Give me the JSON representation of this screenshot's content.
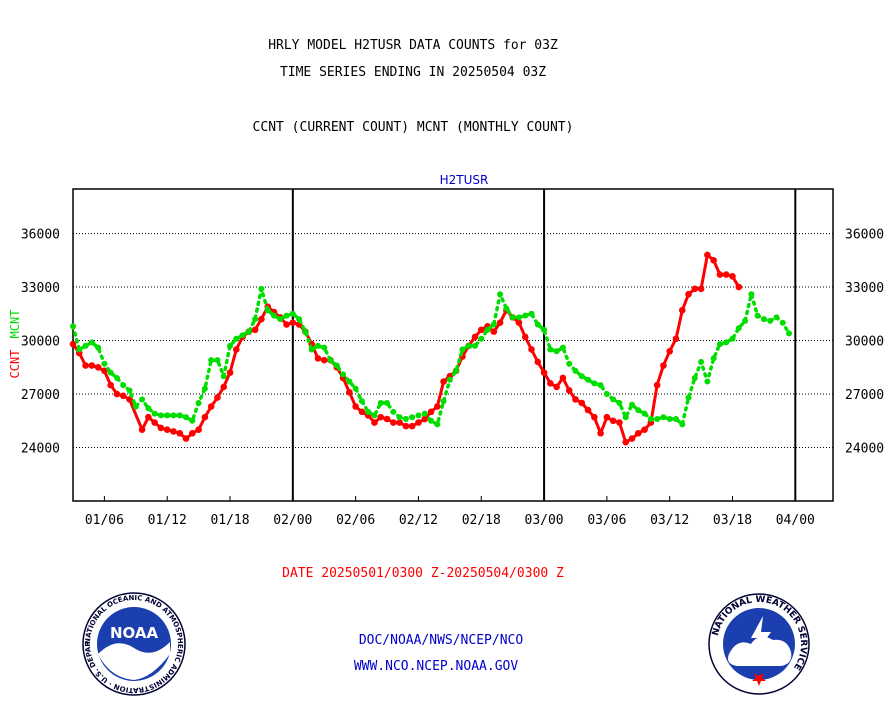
{
  "header": {
    "title_line1": "HRLY MODEL H2TUSR DATA COUNTS for 03Z",
    "title_line2": "TIME SERIES ENDING IN 20250504 03Z",
    "subtitle": "CCNT (CURRENT COUNT) MCNT (MONTHLY COUNT)"
  },
  "footer": {
    "date_range": "DATE 20250501/0300 Z-20250504/0300 Z",
    "org_path": "DOC/NOAA/NWS/NCEP/NCO",
    "website": "WWW.NCO.NCEP.NOAA.GOV"
  },
  "logos": {
    "noaa_text": "NOAA",
    "noaa_ring_text": "NATIONAL OCEANIC AND ATMOSPHERIC ADMINISTRATION · U.S. DEPARTMENT OF COMMERCE ·",
    "nws_ring_text": "NATIONAL WEATHER SERVICE"
  },
  "colors": {
    "ccnt": "#ff0000",
    "mcnt": "#00dd00",
    "panel_label": "#0000cc",
    "grid": "#000000"
  },
  "chart_data": {
    "type": "line",
    "panel_label": "H2TUSR",
    "ylabel_ccnt": "CCNT",
    "ylabel_mcnt": "MCNT",
    "ylim": [
      21000,
      38500
    ],
    "yticks": [
      24000,
      27000,
      30000,
      33000,
      36000
    ],
    "grid": "horizontal-dotted",
    "xlim": [
      0,
      121
    ],
    "x_tick_labels": [
      {
        "x": 5,
        "label": "01/06"
      },
      {
        "x": 15,
        "label": "01/12"
      },
      {
        "x": 25,
        "label": "01/18"
      },
      {
        "x": 35,
        "label": "02/00"
      },
      {
        "x": 45,
        "label": "02/06"
      },
      {
        "x": 55,
        "label": "02/12"
      },
      {
        "x": 65,
        "label": "02/18"
      },
      {
        "x": 75,
        "label": "03/00"
      },
      {
        "x": 85,
        "label": "03/06"
      },
      {
        "x": 95,
        "label": "03/12"
      },
      {
        "x": 105,
        "label": "03/18"
      },
      {
        "x": 115,
        "label": "04/00"
      }
    ],
    "day_separators": [
      35,
      75,
      115
    ],
    "series": [
      {
        "name": "CCNT",
        "color": "#ff0000",
        "style": "solid",
        "points": [
          [
            0,
            29800
          ],
          [
            1,
            29300
          ],
          [
            2,
            28600
          ],
          [
            3,
            28600
          ],
          [
            4,
            28500
          ],
          [
            5,
            28300
          ],
          [
            6,
            27500
          ],
          [
            7,
            27000
          ],
          [
            8,
            26900
          ],
          [
            9,
            26700
          ],
          [
            11,
            25000
          ],
          [
            12,
            25700
          ],
          [
            13,
            25400
          ],
          [
            14,
            25100
          ],
          [
            15,
            25000
          ],
          [
            16,
            24900
          ],
          [
            17,
            24800
          ],
          [
            18,
            24500
          ],
          [
            19,
            24800
          ],
          [
            20,
            25000
          ],
          [
            21,
            25700
          ],
          [
            22,
            26300
          ],
          [
            23,
            26800
          ],
          [
            24,
            27400
          ],
          [
            25,
            28200
          ],
          [
            26,
            29500
          ],
          [
            27,
            30200
          ],
          [
            28,
            30500
          ],
          [
            29,
            30600
          ],
          [
            30,
            31200
          ],
          [
            31,
            31900
          ],
          [
            32,
            31600
          ],
          [
            33,
            31300
          ],
          [
            34,
            30900
          ],
          [
            35,
            31000
          ],
          [
            36,
            30900
          ],
          [
            37,
            30500
          ],
          [
            38,
            29800
          ],
          [
            39,
            29000
          ],
          [
            40,
            28900
          ],
          [
            41,
            28900
          ],
          [
            42,
            28500
          ],
          [
            43,
            27900
          ],
          [
            44,
            27100
          ],
          [
            45,
            26300
          ],
          [
            46,
            26000
          ],
          [
            47,
            25800
          ],
          [
            48,
            25400
          ],
          [
            49,
            25700
          ],
          [
            50,
            25600
          ],
          [
            51,
            25400
          ],
          [
            52,
            25400
          ],
          [
            53,
            25200
          ],
          [
            54,
            25200
          ],
          [
            55,
            25400
          ],
          [
            56,
            25600
          ],
          [
            57,
            26000
          ],
          [
            58,
            26300
          ],
          [
            59,
            27700
          ],
          [
            60,
            28000
          ],
          [
            61,
            28300
          ],
          [
            62,
            29100
          ],
          [
            63,
            29700
          ],
          [
            64,
            30200
          ],
          [
            65,
            30600
          ],
          [
            66,
            30800
          ],
          [
            67,
            30500
          ],
          [
            68,
            31000
          ],
          [
            69,
            31700
          ],
          [
            70,
            31300
          ],
          [
            71,
            31000
          ],
          [
            72,
            30200
          ],
          [
            73,
            29500
          ],
          [
            74,
            28800
          ],
          [
            75,
            28200
          ],
          [
            76,
            27600
          ],
          [
            77,
            27400
          ],
          [
            78,
            27900
          ],
          [
            79,
            27200
          ],
          [
            80,
            26700
          ],
          [
            81,
            26500
          ],
          [
            82,
            26100
          ],
          [
            83,
            25700
          ],
          [
            84,
            24800
          ],
          [
            85,
            25700
          ],
          [
            86,
            25500
          ],
          [
            87,
            25400
          ],
          [
            88,
            24300
          ],
          [
            89,
            24500
          ],
          [
            90,
            24800
          ],
          [
            91,
            25000
          ],
          [
            92,
            25400
          ],
          [
            93,
            27500
          ],
          [
            94,
            28600
          ],
          [
            95,
            29400
          ],
          [
            96,
            30100
          ],
          [
            97,
            31700
          ],
          [
            98,
            32600
          ],
          [
            99,
            32900
          ],
          [
            100,
            32900
          ],
          [
            101,
            34800
          ],
          [
            102,
            34500
          ],
          [
            103,
            33700
          ],
          [
            104,
            33700
          ],
          [
            105,
            33600
          ],
          [
            106,
            33000
          ]
        ]
      },
      {
        "name": "MCNT",
        "color": "#00dd00",
        "style": "dotted",
        "points": [
          [
            0,
            30800
          ],
          [
            1,
            29500
          ],
          [
            2,
            29700
          ],
          [
            3,
            29900
          ],
          [
            4,
            29600
          ],
          [
            5,
            28700
          ],
          [
            6,
            28200
          ],
          [
            7,
            27900
          ],
          [
            8,
            27500
          ],
          [
            9,
            27200
          ],
          [
            10,
            26300
          ],
          [
            11,
            26700
          ],
          [
            12,
            26200
          ],
          [
            13,
            25900
          ],
          [
            14,
            25800
          ],
          [
            15,
            25800
          ],
          [
            16,
            25800
          ],
          [
            17,
            25800
          ],
          [
            18,
            25700
          ],
          [
            19,
            25500
          ],
          [
            20,
            26500
          ],
          [
            21,
            27300
          ],
          [
            22,
            28900
          ],
          [
            23,
            28900
          ],
          [
            24,
            28000
          ],
          [
            25,
            29700
          ],
          [
            26,
            30100
          ],
          [
            27,
            30300
          ],
          [
            28,
            30500
          ],
          [
            29,
            31200
          ],
          [
            30,
            32900
          ],
          [
            31,
            31700
          ],
          [
            32,
            31400
          ],
          [
            33,
            31200
          ],
          [
            34,
            31400
          ],
          [
            35,
            31500
          ],
          [
            36,
            31200
          ],
          [
            37,
            30500
          ],
          [
            38,
            29500
          ],
          [
            39,
            29700
          ],
          [
            40,
            29600
          ],
          [
            41,
            28900
          ],
          [
            42,
            28600
          ],
          [
            43,
            28100
          ],
          [
            44,
            27700
          ],
          [
            45,
            27300
          ],
          [
            46,
            26600
          ],
          [
            47,
            26000
          ],
          [
            48,
            25800
          ],
          [
            49,
            26500
          ],
          [
            50,
            26500
          ],
          [
            51,
            26000
          ],
          [
            52,
            25700
          ],
          [
            53,
            25600
          ],
          [
            54,
            25700
          ],
          [
            55,
            25800
          ],
          [
            56,
            25900
          ],
          [
            57,
            25500
          ],
          [
            58,
            25300
          ],
          [
            59,
            26600
          ],
          [
            60,
            27800
          ],
          [
            61,
            28300
          ],
          [
            62,
            29500
          ],
          [
            63,
            29700
          ],
          [
            64,
            29700
          ],
          [
            65,
            30100
          ],
          [
            66,
            30600
          ],
          [
            67,
            30900
          ],
          [
            68,
            32600
          ],
          [
            69,
            31800
          ],
          [
            70,
            31300
          ],
          [
            71,
            31300
          ],
          [
            72,
            31400
          ],
          [
            73,
            31500
          ],
          [
            74,
            30900
          ],
          [
            75,
            30600
          ],
          [
            76,
            29500
          ],
          [
            77,
            29400
          ],
          [
            78,
            29600
          ],
          [
            79,
            28700
          ],
          [
            80,
            28300
          ],
          [
            81,
            28000
          ],
          [
            82,
            27800
          ],
          [
            83,
            27600
          ],
          [
            84,
            27500
          ],
          [
            85,
            27000
          ],
          [
            86,
            26700
          ],
          [
            87,
            26500
          ],
          [
            88,
            25700
          ],
          [
            89,
            26400
          ],
          [
            90,
            26100
          ],
          [
            91,
            25900
          ],
          [
            92,
            25600
          ],
          [
            93,
            25600
          ],
          [
            94,
            25700
          ],
          [
            95,
            25600
          ],
          [
            96,
            25600
          ],
          [
            97,
            25300
          ],
          [
            98,
            26800
          ],
          [
            99,
            27900
          ],
          [
            100,
            28800
          ],
          [
            101,
            27700
          ],
          [
            102,
            29000
          ],
          [
            103,
            29800
          ],
          [
            104,
            29900
          ],
          [
            105,
            30100
          ],
          [
            106,
            30700
          ],
          [
            107,
            31100
          ],
          [
            108,
            32600
          ],
          [
            109,
            31400
          ],
          [
            110,
            31200
          ],
          [
            111,
            31100
          ],
          [
            112,
            31300
          ],
          [
            113,
            31000
          ],
          [
            114,
            30400
          ]
        ]
      }
    ]
  }
}
